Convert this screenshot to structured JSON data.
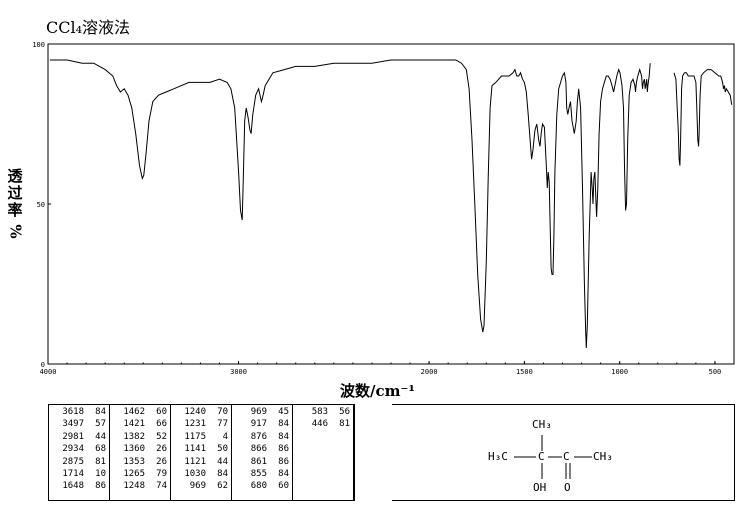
{
  "header": {
    "title": "CCl₄溶液法"
  },
  "chart_data": {
    "type": "line",
    "title": "CCl₄溶液法",
    "xlabel": "波数/cm⁻¹",
    "ylabel": "透过率",
    "ylabel_unit": "%",
    "xlim": [
      4000,
      400
    ],
    "ylim": [
      0,
      100
    ],
    "x_ticks": [
      4000,
      3000,
      2000,
      1500,
      1000,
      500
    ],
    "y_ticks": [
      0,
      50,
      100
    ],
    "x_tick_labels": [
      "4000",
      "3000",
      "2000",
      "1500",
      "1000",
      "500"
    ],
    "y_tick_labels": [
      "0",
      "50",
      "100"
    ],
    "grid": false,
    "series": [
      {
        "points": [
          [
            3990,
            95
          ],
          [
            3900,
            95
          ],
          [
            3820,
            94
          ],
          [
            3760,
            94
          ],
          [
            3700,
            92
          ],
          [
            3660,
            90
          ],
          [
            3640,
            87
          ],
          [
            3620,
            85
          ],
          [
            3600,
            86
          ],
          [
            3580,
            84
          ],
          [
            3560,
            80
          ],
          [
            3540,
            72
          ],
          [
            3520,
            62
          ],
          [
            3505,
            58
          ],
          [
            3497,
            59
          ],
          [
            3485,
            66
          ],
          [
            3470,
            76
          ],
          [
            3450,
            82
          ],
          [
            3420,
            84
          ],
          [
            3380,
            85
          ],
          [
            3340,
            86
          ],
          [
            3300,
            87
          ],
          [
            3260,
            88
          ],
          [
            3200,
            88
          ],
          [
            3150,
            88
          ],
          [
            3100,
            89
          ],
          [
            3060,
            88
          ],
          [
            3040,
            86
          ],
          [
            3020,
            80
          ],
          [
            3000,
            60
          ],
          [
            2990,
            48
          ],
          [
            2981,
            45
          ],
          [
            2975,
            58
          ],
          [
            2968,
            76
          ],
          [
            2960,
            80
          ],
          [
            2950,
            77
          ],
          [
            2940,
            73
          ],
          [
            2934,
            72
          ],
          [
            2925,
            78
          ],
          [
            2910,
            84
          ],
          [
            2895,
            86
          ],
          [
            2880,
            82
          ],
          [
            2875,
            83
          ],
          [
            2860,
            87
          ],
          [
            2820,
            91
          ],
          [
            2760,
            92
          ],
          [
            2700,
            93
          ],
          [
            2600,
            93
          ],
          [
            2500,
            94
          ],
          [
            2400,
            94
          ],
          [
            2300,
            94
          ],
          [
            2200,
            95
          ],
          [
            2100,
            95
          ],
          [
            2000,
            95
          ],
          [
            1950,
            95
          ],
          [
            1900,
            95
          ],
          [
            1860,
            95
          ],
          [
            1830,
            94
          ],
          [
            1805,
            92
          ],
          [
            1790,
            86
          ],
          [
            1775,
            70
          ],
          [
            1760,
            50
          ],
          [
            1745,
            28
          ],
          [
            1730,
            14
          ],
          [
            1718,
            10
          ],
          [
            1712,
            12
          ],
          [
            1700,
            32
          ],
          [
            1690,
            58
          ],
          [
            1680,
            80
          ],
          [
            1670,
            87
          ],
          [
            1650,
            88
          ],
          [
            1620,
            90
          ],
          [
            1600,
            90
          ],
          [
            1580,
            90
          ],
          [
            1560,
            91
          ],
          [
            1550,
            92
          ],
          [
            1540,
            90
          ],
          [
            1530,
            90
          ],
          [
            1520,
            91
          ],
          [
            1510,
            89
          ],
          [
            1500,
            88
          ],
          [
            1490,
            85
          ],
          [
            1480,
            78
          ],
          [
            1470,
            70
          ],
          [
            1462,
            64
          ],
          [
            1455,
            67
          ],
          [
            1445,
            73
          ],
          [
            1435,
            75
          ],
          [
            1425,
            70
          ],
          [
            1418,
            68
          ],
          [
            1412,
            72
          ],
          [
            1405,
            75
          ],
          [
            1395,
            74
          ],
          [
            1385,
            62
          ],
          [
            1380,
            55
          ],
          [
            1375,
            60
          ],
          [
            1370,
            57
          ],
          [
            1365,
            44
          ],
          [
            1360,
            30
          ],
          [
            1355,
            28
          ],
          [
            1350,
            28
          ],
          [
            1345,
            40
          ],
          [
            1340,
            60
          ],
          [
            1330,
            78
          ],
          [
            1320,
            86
          ],
          [
            1310,
            88
          ],
          [
            1300,
            90
          ],
          [
            1290,
            91
          ],
          [
            1282,
            88
          ],
          [
            1278,
            80
          ],
          [
            1272,
            78
          ],
          [
            1266,
            80
          ],
          [
            1258,
            82
          ],
          [
            1250,
            76
          ],
          [
            1244,
            74
          ],
          [
            1238,
            72
          ],
          [
            1233,
            74
          ],
          [
            1228,
            76
          ],
          [
            1222,
            82
          ],
          [
            1215,
            86
          ],
          [
            1205,
            80
          ],
          [
            1195,
            55
          ],
          [
            1185,
            25
          ],
          [
            1178,
            10
          ],
          [
            1175,
            5
          ],
          [
            1170,
            12
          ],
          [
            1160,
            40
          ],
          [
            1150,
            60
          ],
          [
            1144,
            55
          ],
          [
            1140,
            50
          ],
          [
            1135,
            58
          ],
          [
            1130,
            60
          ],
          [
            1125,
            52
          ],
          [
            1121,
            46
          ],
          [
            1115,
            55
          ],
          [
            1108,
            72
          ],
          [
            1100,
            82
          ],
          [
            1090,
            86
          ],
          [
            1080,
            88
          ],
          [
            1070,
            90
          ],
          [
            1060,
            90
          ],
          [
            1050,
            89
          ],
          [
            1040,
            87
          ],
          [
            1032,
            85
          ],
          [
            1025,
            87
          ],
          [
            1015,
            90
          ],
          [
            1005,
            92
          ],
          [
            998,
            91
          ],
          [
            988,
            87
          ],
          [
            980,
            80
          ],
          [
            974,
            60
          ],
          [
            969,
            48
          ],
          [
            964,
            50
          ],
          [
            958,
            70
          ],
          [
            950,
            84
          ],
          [
            940,
            88
          ],
          [
            930,
            89
          ],
          [
            920,
            87
          ],
          [
            917,
            85
          ],
          [
            912,
            88
          ],
          [
            905,
            90
          ],
          [
            895,
            92
          ],
          [
            885,
            90
          ],
          [
            880,
            86
          ],
          [
            876,
            88
          ],
          [
            870,
            89
          ],
          [
            866,
            86
          ],
          [
            861,
            88
          ],
          [
            858,
            89
          ],
          [
            855,
            85
          ],
          [
            852,
            87
          ],
          [
            845,
            90
          ],
          [
            840,
            94
          ]
        ]
      },
      {
        "points": [
          [
            715,
            91
          ],
          [
            705,
            89
          ],
          [
            698,
            80
          ],
          [
            692,
            72
          ],
          [
            688,
            64
          ],
          [
            684,
            62
          ],
          [
            680,
            70
          ],
          [
            675,
            86
          ],
          [
            670,
            90
          ],
          [
            660,
            91
          ],
          [
            650,
            91
          ],
          [
            640,
            90
          ],
          [
            630,
            90
          ],
          [
            620,
            90
          ],
          [
            610,
            90
          ],
          [
            600,
            88
          ],
          [
            595,
            80
          ],
          [
            590,
            70
          ],
          [
            586,
            68
          ],
          [
            583,
            72
          ],
          [
            578,
            84
          ],
          [
            572,
            90
          ],
          [
            560,
            91
          ],
          [
            540,
            92
          ],
          [
            520,
            92
          ],
          [
            500,
            91
          ],
          [
            480,
            90
          ],
          [
            470,
            90
          ],
          [
            460,
            88
          ],
          [
            455,
            86
          ],
          [
            450,
            87
          ],
          [
            446,
            85
          ],
          [
            440,
            86
          ],
          [
            430,
            85
          ],
          [
            420,
            84
          ],
          [
            412,
            81
          ]
        ]
      }
    ],
    "peak_table": {
      "columns": [
        [
          [
            "3618",
            "84"
          ],
          [
            "3497",
            "57"
          ],
          [
            "2981",
            "44"
          ],
          [
            "2934",
            "68"
          ],
          [
            "2875",
            "81"
          ],
          [
            "1714",
            "10"
          ],
          [
            "1648",
            "86"
          ]
        ],
        [
          [
            "1462",
            "60"
          ],
          [
            "1421",
            "66"
          ],
          [
            "1382",
            "52"
          ],
          [
            "1360",
            "26"
          ],
          [
            "1353",
            "26"
          ],
          [
            "1265",
            "79"
          ],
          [
            "1248",
            "74"
          ]
        ],
        [
          [
            "1240",
            "70"
          ],
          [
            "1231",
            "77"
          ],
          [
            "1175",
            "4"
          ],
          [
            "1141",
            "50"
          ],
          [
            "1121",
            "44"
          ],
          [
            "1030",
            "84"
          ],
          [
            "969",
            "62"
          ]
        ],
        [
          [
            "969",
            "45"
          ],
          [
            "917",
            "84"
          ],
          [
            "876",
            "84"
          ],
          [
            "866",
            "86"
          ],
          [
            "861",
            "86"
          ],
          [
            "855",
            "84"
          ],
          [
            "680",
            "60"
          ]
        ],
        [
          [
            "583",
            "56"
          ],
          [
            "446",
            "81"
          ]
        ]
      ]
    },
    "structure": {
      "ch3_top": "CH₃",
      "left_methyl": "H₃C",
      "right_methyl": "CH₃",
      "hydroxyl": "OH",
      "carbonyl_o": "O",
      "carbon": "C"
    }
  }
}
